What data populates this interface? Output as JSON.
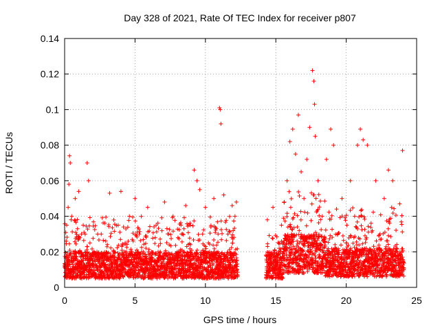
{
  "chart_data": {
    "type": "scatter",
    "title": "Day 328 of 2021, Rate Of TEC Index for receiver p807",
    "xlabel": "GPS time / hours",
    "ylabel": "ROTI / TECUs",
    "xlim": [
      0,
      25
    ],
    "ylim": [
      0,
      0.14
    ],
    "x_ticks": [
      "0",
      "5",
      "10",
      "15",
      "20",
      "25"
    ],
    "y_ticks": [
      "0",
      "0.02",
      "0.04",
      "0.06",
      "0.08",
      "0.1",
      "0.12",
      "0.14"
    ],
    "x_tick_values": [
      0,
      5,
      10,
      15,
      20,
      25
    ],
    "y_tick_values": [
      0,
      0.02,
      0.04,
      0.06,
      0.08,
      0.1,
      0.12,
      0.14
    ],
    "grid": true,
    "marker": "plus",
    "color": "#ff0000",
    "series": [
      {
        "name": "ROTI",
        "note": "dense point cloud; representative sample below, data gap ~12.3 to ~14.3 h",
        "x": [
          0.05,
          0.15,
          0.25,
          0.3,
          0.35,
          0.4,
          0.5,
          0.6,
          0.75,
          0.9,
          1.0,
          1.2,
          1.4,
          1.6,
          1.7,
          1.8,
          2.0,
          2.3,
          2.6,
          2.9,
          3.2,
          3.5,
          3.8,
          4.0,
          4.3,
          4.6,
          5.0,
          5.3,
          5.6,
          5.9,
          6.2,
          6.5,
          6.8,
          7.1,
          7.4,
          7.7,
          8.0,
          8.3,
          8.6,
          8.9,
          9.2,
          9.4,
          9.6,
          9.8,
          10.0,
          10.3,
          10.6,
          10.9,
          11.0,
          11.05,
          11.1,
          11.3,
          11.6,
          11.9,
          12.1,
          12.2,
          14.4,
          14.6,
          14.8,
          15.0,
          15.2,
          15.4,
          15.6,
          15.8,
          16.0,
          16.2,
          16.4,
          16.6,
          16.8,
          17.0,
          17.2,
          17.4,
          17.6,
          17.7,
          17.75,
          17.8,
          18.0,
          18.3,
          18.6,
          18.9,
          19.1,
          19.4,
          19.7,
          20.0,
          20.3,
          20.6,
          20.8,
          21.0,
          21.2,
          21.5,
          21.8,
          22.1,
          22.4,
          22.7,
          23.0,
          23.3,
          23.5,
          23.8,
          24.0
        ],
        "y": [
          0.012,
          0.035,
          0.045,
          0.058,
          0.074,
          0.07,
          0.04,
          0.02,
          0.05,
          0.015,
          0.054,
          0.03,
          0.01,
          0.07,
          0.06,
          0.025,
          0.015,
          0.02,
          0.03,
          0.01,
          0.053,
          0.02,
          0.035,
          0.054,
          0.025,
          0.04,
          0.05,
          0.03,
          0.02,
          0.045,
          0.015,
          0.035,
          0.02,
          0.048,
          0.03,
          0.04,
          0.02,
          0.03,
          0.046,
          0.015,
          0.066,
          0.06,
          0.055,
          0.03,
          0.045,
          0.02,
          0.05,
          0.03,
          0.101,
          0.1,
          0.092,
          0.052,
          0.03,
          0.046,
          0.04,
          0.048,
          0.038,
          0.015,
          0.045,
          0.012,
          0.02,
          0.035,
          0.048,
          0.06,
          0.082,
          0.089,
          0.075,
          0.097,
          0.065,
          0.05,
          0.072,
          0.09,
          0.122,
          0.116,
          0.103,
          0.085,
          0.06,
          0.04,
          0.072,
          0.089,
          0.08,
          0.03,
          0.05,
          0.025,
          0.06,
          0.04,
          0.08,
          0.089,
          0.083,
          0.08,
          0.02,
          0.06,
          0.03,
          0.05,
          0.066,
          0.06,
          0.02,
          0.047,
          0.077
        ]
      }
    ],
    "density": {
      "segments": [
        {
          "x_start": 0.0,
          "x_end": 12.3,
          "baseline_low": 0.005,
          "baseline_high": 0.02,
          "spread_high": 0.04
        },
        {
          "x_start": 14.3,
          "x_end": 15.5,
          "baseline_low": 0.005,
          "baseline_high": 0.02,
          "spread_high": 0.03
        },
        {
          "x_start": 15.5,
          "x_end": 18.5,
          "baseline_low": 0.008,
          "baseline_high": 0.03,
          "spread_high": 0.055
        },
        {
          "x_start": 18.5,
          "x_end": 24.1,
          "baseline_low": 0.006,
          "baseline_high": 0.022,
          "spread_high": 0.045
        }
      ]
    }
  }
}
